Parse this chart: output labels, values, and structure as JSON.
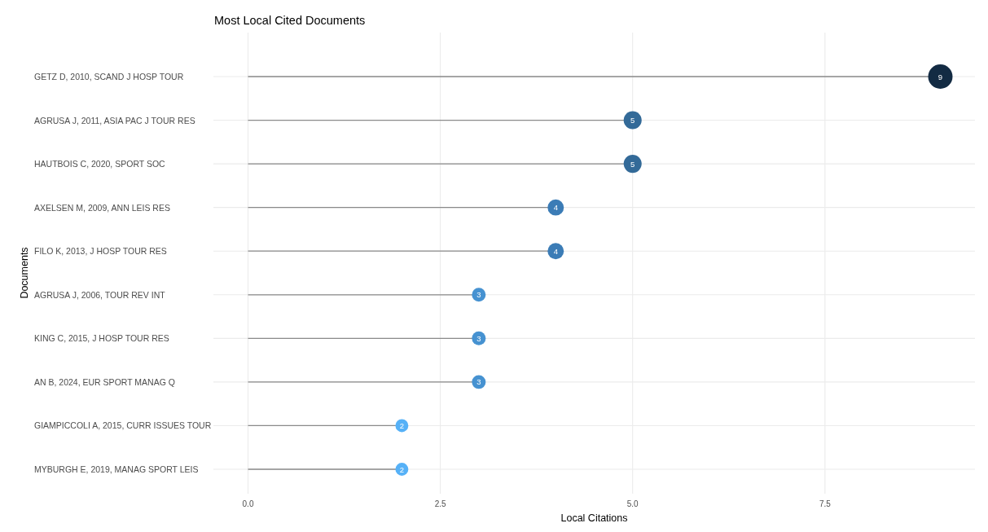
{
  "chart_data": {
    "type": "lollipop",
    "title": "Most Local Cited Documents",
    "xlabel": "Local Citations",
    "ylabel": "Documents",
    "orientation": "horizontal",
    "categories": [
      "GETZ D, 2010, SCAND J HOSP TOUR",
      "AGRUSA J, 2011, ASIA PAC J TOUR RES",
      "HAUTBOIS C, 2020, SPORT SOC",
      "AXELSEN M, 2009, ANN LEIS RES",
      "FILO K, 2013, J HOSP TOUR RES",
      "AGRUSA J, 2006, TOUR REV INT",
      "KING C, 2015, J HOSP TOUR RES",
      "AN B, 2024, EUR SPORT MANAG Q",
      "GIAMPICCOLI A, 2015, CURR ISSUES TOUR",
      "MYBURGH E, 2019, MANAG SPORT LEIS"
    ],
    "values": [
      9,
      5,
      5,
      4,
      4,
      3,
      3,
      3,
      2,
      2
    ],
    "sizes": [
      1,
      0.54,
      0.54,
      0.44,
      0.44,
      0.32,
      0.32,
      0.32,
      0.28,
      0.28
    ],
    "colors": [
      "#132b43",
      "#336a98",
      "#336a98",
      "#3b7cb6",
      "#3b7cb6",
      "#4692d1",
      "#4692d1",
      "#4692d1",
      "#56b1f7",
      "#56b1f7"
    ],
    "xlim": [
      -0.45,
      9.45
    ],
    "xticks": [
      {
        "value": 0,
        "label": "0.0"
      },
      2.5,
      {
        "value": 5,
        "label": "5.0"
      },
      7.5
    ],
    "grid": true,
    "data_labels": true
  }
}
